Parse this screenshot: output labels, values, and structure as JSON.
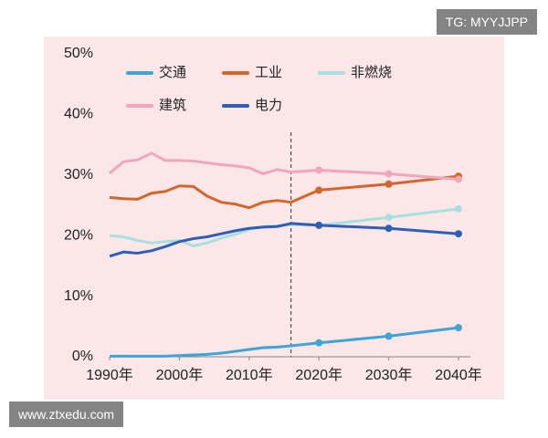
{
  "chart_data": {
    "type": "line",
    "x": [
      1990,
      1992,
      1994,
      1996,
      1998,
      2000,
      2002,
      2004,
      2006,
      2008,
      2010,
      2012,
      2014,
      2016,
      2020,
      2030,
      2040
    ],
    "series": [
      {
        "name": "交通",
        "color": "#3fa5d6",
        "values": [
          0.1,
          0.1,
          0.1,
          0.1,
          0.1,
          0.2,
          0.3,
          0.4,
          0.6,
          0.9,
          1.2,
          1.5,
          1.6,
          1.8,
          2.3,
          3.4,
          4.8
        ]
      },
      {
        "name": "工业",
        "color": "#d4662c",
        "values": [
          26.3,
          26.1,
          26,
          27,
          27.3,
          28.2,
          28.1,
          26.5,
          25.5,
          25.2,
          24.6,
          25.5,
          25.8,
          25.5,
          27.5,
          28.5,
          29.8
        ]
      },
      {
        "name": "非燃烧",
        "color": "#a8e0de",
        "values": [
          20,
          19.8,
          19.2,
          18.8,
          19,
          19.2,
          18.3,
          18.8,
          19.6,
          20.2,
          21,
          21.5,
          21.6,
          21.8,
          21.7,
          23,
          24.4
        ]
      },
      {
        "name": "建筑",
        "color": "#eea7bc",
        "values": [
          30.3,
          32.2,
          32.5,
          33.6,
          32.4,
          32.4,
          32.3,
          32,
          31.7,
          31.5,
          31.2,
          30.2,
          30.9,
          30.5,
          30.8,
          30.2,
          29.3
        ]
      },
      {
        "name": "电力",
        "color": "#2e5fb5",
        "values": [
          16.6,
          17.3,
          17.1,
          17.5,
          18.2,
          19,
          19.5,
          19.8,
          20.3,
          20.8,
          21.2,
          21.4,
          21.5,
          22,
          21.7,
          21.2,
          20.3
        ]
      }
    ],
    "xlim": [
      1990,
      2040
    ],
    "xticks": [
      {
        "value": 1990,
        "label": "1990年"
      },
      {
        "value": 2000,
        "label": "2000年"
      },
      {
        "value": 2010,
        "label": "2010年"
      },
      {
        "value": 2020,
        "label": "2020年"
      },
      {
        "value": 2030,
        "label": "2030年"
      },
      {
        "value": 2040,
        "label": "2040年"
      }
    ],
    "ylim": [
      0,
      50
    ],
    "yticks": [
      {
        "value": 0,
        "label": "0%"
      },
      {
        "value": 10,
        "label": "10%"
      },
      {
        "value": 20,
        "label": "20%"
      },
      {
        "value": 30,
        "label": "30%"
      },
      {
        "value": 40,
        "label": "40%"
      },
      {
        "value": 50,
        "label": "50%"
      }
    ],
    "divider_x": 2016,
    "grid": false
  },
  "watermarks": [
    "TG: MYYJJPP",
    "www.ztxedu.com"
  ]
}
